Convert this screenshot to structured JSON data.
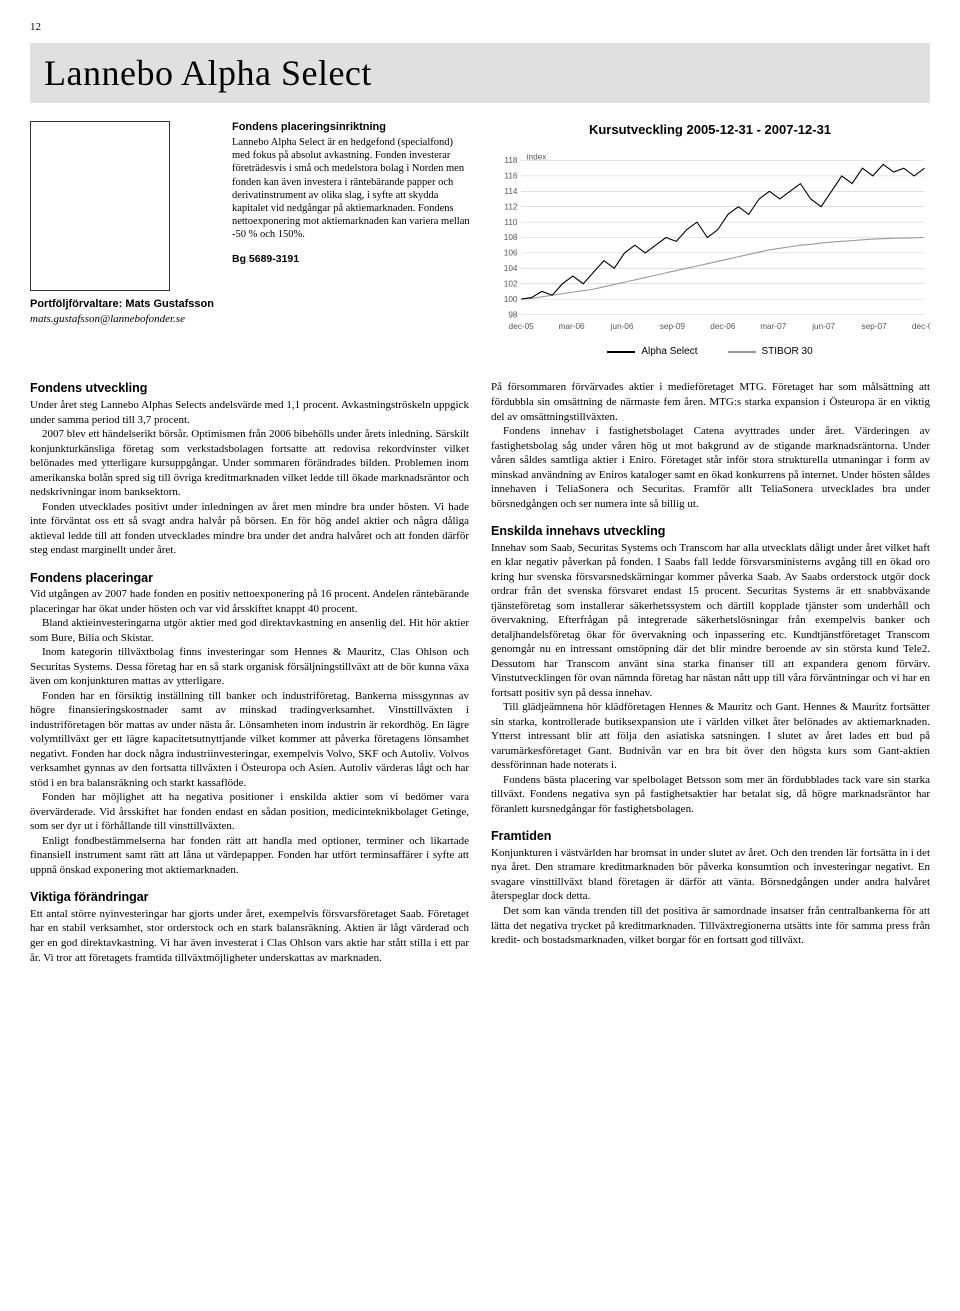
{
  "page_number": "12",
  "title": "Lannebo Alpha Select",
  "intro": {
    "heading": "Fondens placeringsinriktning",
    "body": "Lannebo Alpha Select är en hedgefond (specialfond) med fokus på absolut avkastning. Fonden investerar företrädesvis i små och medelstora bolag i Norden men fonden kan även investera i räntebärande papper och derivatinstrument av olika slag, i syfte att skydda kapitalet vid nedgångar på aktiemarknaden. Fondens nettoexponering mot aktiemarknaden kan variera mellan -50 % och 150%.",
    "bg": "Bg 5689-3191"
  },
  "manager": {
    "label": "Portföljförvaltare: Mats Gustafsson",
    "email": "mats.gustafsson@lannebofonder.se"
  },
  "chart": {
    "title": "Kursutveckling 2005-12-31 - 2007-12-31",
    "y_label": "index",
    "y_min": 98,
    "y_max": 118,
    "y_ticks": [
      98,
      100,
      102,
      104,
      106,
      108,
      110,
      112,
      114,
      116,
      118
    ],
    "x_labels": [
      "dec-05",
      "mar-06",
      "jun-06",
      "sep-09",
      "dec-06",
      "mar-07",
      "jun-07",
      "sep-07",
      "dec-07"
    ],
    "series": [
      {
        "name": "Alpha Select",
        "color": "#000000",
        "width": 1.2,
        "points": [
          100,
          100.2,
          101,
          100.5,
          102,
          103,
          102,
          103.5,
          105,
          104,
          106,
          107,
          106,
          107,
          108,
          107.5,
          109,
          110,
          108,
          109,
          111,
          112,
          111,
          113,
          114,
          113,
          114,
          115,
          113,
          112,
          114,
          116,
          115,
          117,
          116,
          117.5,
          116.5,
          117,
          116,
          117
        ]
      },
      {
        "name": "STIBOR 30",
        "color": "#999999",
        "width": 1.2,
        "points": [
          100,
          100.1,
          100.3,
          100.5,
          100.7,
          100.9,
          101.1,
          101.3,
          101.6,
          101.9,
          102.2,
          102.5,
          102.8,
          103.1,
          103.4,
          103.7,
          104,
          104.3,
          104.6,
          104.9,
          105.2,
          105.5,
          105.8,
          106.1,
          106.4,
          106.6,
          106.8,
          107,
          107.1,
          107.3,
          107.4,
          107.5,
          107.6,
          107.7,
          107.8,
          107.85,
          107.9,
          107.93,
          107.96,
          108
        ]
      }
    ],
    "grid_color": "#cccccc",
    "axis_color": "#999999",
    "label_fontsize": 9,
    "label_color": "#555555"
  },
  "left_column": {
    "sections": [
      {
        "heading": "Fondens utveckling",
        "paragraphs": [
          "Under året steg Lannebo Alphas Selects andelsvärde med 1,1 procent. Avkastningströskeln uppgick under samma period till 3,7 procent.",
          "2007 blev ett händelserikt börsår. Optimismen från 2006 bibehölls under årets inledning. Särskilt konjunkturkänsliga företag som verkstadsbolagen fortsatte att redovisa rekordvinster vilket belönades med ytterligare kursuppgångar. Under sommaren förändrades bilden. Problemen inom amerikanska bolån spred sig till övriga kreditmarknaden vilket ledde till ökade marknadsräntor och nedskrivningar inom banksektorn.",
          "Fonden utvecklades positivt under inledningen av året men mindre bra under hösten. Vi hade inte förväntat oss ett så svagt andra halvår på börsen. En för hög andel aktier och några dåliga aktieval ledde till att fonden utvecklades mindre bra under det andra halvåret och att fonden därför steg endast marginellt under året."
        ]
      },
      {
        "heading": "Fondens placeringar",
        "paragraphs": [
          "Vid utgången av 2007 hade fonden en positiv nettoexponering på 16 procent. Andelen räntebärande placeringar har ökat under hösten och var vid årsskiftet knappt 40 procent.",
          "Bland aktieinvesteringarna utgör aktier med god direktavkastning en ansenlig del. Hit hör aktier som Bure, Bilia och Skistar.",
          "Inom kategorin tillväxtbolag finns investeringar som Hennes & Mauritz, Clas Ohlson och Securitas Systems. Dessa företag har en så stark organisk försäljningstillväxt att de bör kunna växa även om konjunkturen mattas av ytterligare.",
          "Fonden har en försiktig inställning till banker och industriföretag. Bankerna missgynnas av högre finansieringskostnader samt av minskad tradingverksamhet. Vinsttillväxten i industriföretagen bör mattas av under nästa år. Lönsamheten inom industrin är rekordhög. En lägre volymtillväxt ger ett lägre kapacitetsutnyttjande vilket kommer att påverka företagens lönsamhet negativt. Fonden har dock några industriinvesteringar, exempelvis Volvo, SKF och Autoliv. Volvos verksamhet gynnas av den fortsatta tillväxten i Östeuropa och Asien. Autoliv värderas lågt och har stöd i en bra balansräkning och starkt kassaflöde.",
          "Fonden har möjlighet att ha negativa positioner i enskilda aktier som vi bedömer vara övervärderade. Vid årsskiftet har fonden endast en sådan position, medicinteknikbolaget Getinge, som ser dyr ut i förhållande till vinsttillväxten.",
          "Enligt fondbestämmelserna har fonden rätt att handla med optioner, terminer och likartade finansiell instrument samt rätt att låna ut värdepapper. Fonden har utfört terminsaffärer i syfte att uppnå önskad exponering mot aktiemarknaden."
        ]
      },
      {
        "heading": "Viktiga förändringar",
        "paragraphs": [
          "Ett antal större nyinvesteringar har gjorts under året, exempelvis försvarsföretaget Saab. Företaget har en stabil verksamhet, stor orderstock och en stark balansräkning. Aktien är lågt värderad och ger en god direktavkastning. Vi har även investerat i Clas Ohlson vars aktie har stått stilla i ett par år. Vi tror att företagets framtida tillväxtmöjligheter underskattas av marknaden."
        ]
      }
    ]
  },
  "right_column": {
    "intro_paragraphs": [
      "På försommaren förvärvades aktier i medieföretaget MTG. Företaget har som målsättning att fördubbla sin omsättning de närmaste fem åren. MTG:s starka expansion i Östeuropa är en viktig del av omsättningstillväxten.",
      "Fondens innehav i fastighetsbolaget Catena avyttrades under året. Värderingen av fastighetsbolag såg under våren hög ut mot bakgrund av de stigande marknadsräntorna. Under våren såldes samtliga aktier i Eniro. Företaget står inför stora strukturella utmaningar i form av minskad användning av Eniros kataloger samt en ökad konkurrens på internet. Under hösten såldes innehaven i TeliaSonera och Securitas. Framför allt TeliaSonera utvecklades bra under börsnedgången och ser numera inte så billig ut."
    ],
    "sections": [
      {
        "heading": "Enskilda innehavs utveckling",
        "paragraphs": [
          "Innehav som Saab, Securitas Systems och Transcom har alla utvecklats dåligt under året vilket haft en klar negativ påverkan på fonden. I Saabs fall ledde försvarsministerns avgång till en ökad oro kring hur svenska försvarsnedskärningar kommer påverka Saab. Av Saabs orderstock utgör dock ordrar från det svenska försvaret endast 15 procent. Securitas Systems är ett snabbväxande tjänsteföretag som installerar säkerhetssystem och därtill kopplade tjänster som underhåll och övervakning. Efterfrågan på integrerade säkerhetslösningar från exempelvis banker och detaljhandelsföretag ökar för övervakning och inpassering etc. Kundtjänstföretaget Transcom genomgår nu en intressant omstöpning där det blir mindre beroende av sin största kund Tele2. Dessutom har Transcom använt sina starka finanser till att expandera genom förvärv. Vinstutvecklingen för ovan nämnda företag har nästan nått upp till våra förväntningar och vi har en fortsatt positiv syn på dessa innehav.",
          "Till glädjeämnena hör klädföretagen Hennes & Mauritz och Gant. Hennes & Mauritz fortsätter sin starka, kontrollerade butiksexpansion ute i världen vilket åter belönades av aktiemarknaden. Ytterst intressant blir att följa den asiatiska satsningen. I slutet av året lades ett bud på varumärkesföretaget Gant. Budnivån var en bra bit över den högsta kurs som Gant-aktien dessförinnan hade noterats i.",
          "Fondens bästa placering var spelbolaget Betsson som mer än fördubblades tack vare sin starka tillväxt. Fondens negativa syn på fastighetsaktier har betalat sig, då högre marknadsräntor har föranlett kursnedgångar för fastighetsbolagen."
        ]
      },
      {
        "heading": "Framtiden",
        "paragraphs": [
          "Konjunkturen i västvärlden har bromsat in under slutet av året. Och den trenden lär fortsätta in i det nya året. Den stramare kreditmarknaden bör påverka konsumtion och investeringar negativt. En svagare vinsttillväxt bland företagen är därför att vänta. Börsnedgången under andra halvåret återspeglar dock detta.",
          "Det som kan vända trenden till det positiva är samordnade insatser från centralbankerna för att lätta det negativa trycket på kreditmarknaden. Tillväxtregionerna utsätts inte för samma press från kredit- och bostadsmarknaden, vilket borgar för en fortsatt god tillväxt."
        ]
      }
    ]
  }
}
